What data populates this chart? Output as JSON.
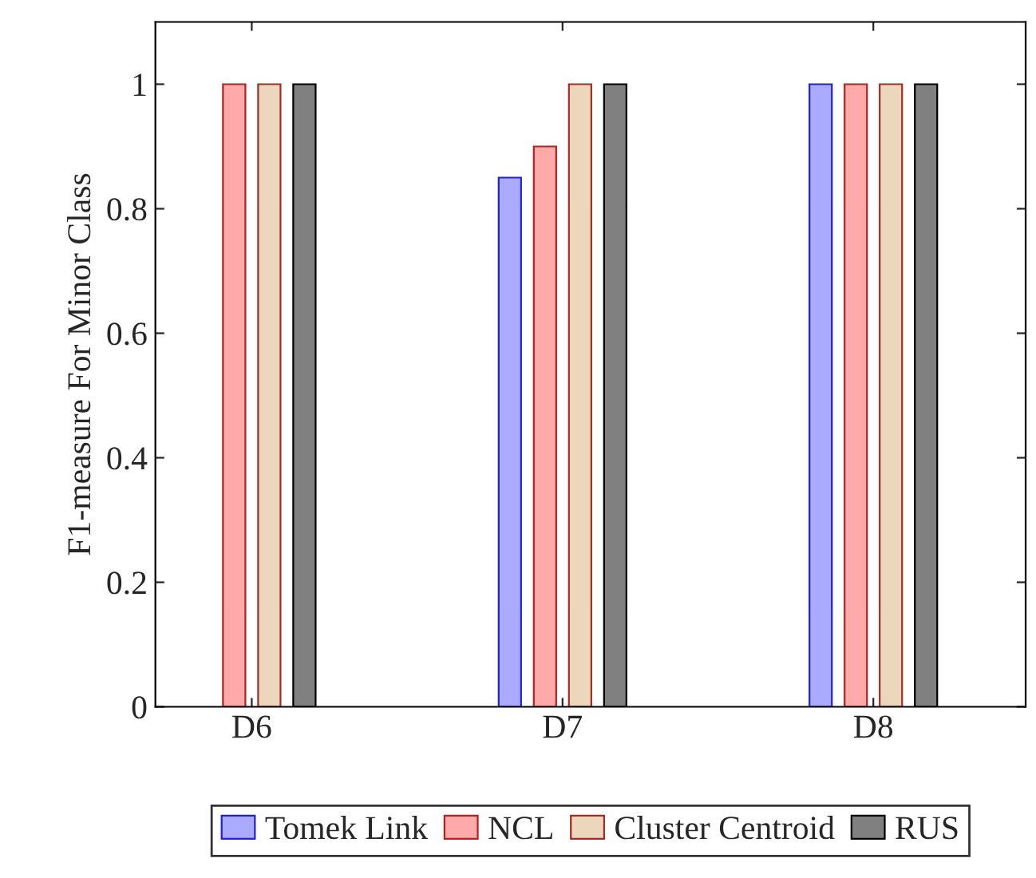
{
  "chart_data": {
    "type": "bar",
    "ylabel": "F1-measure For Minor Class",
    "categories": [
      "D6",
      "D7",
      "D8"
    ],
    "series": [
      {
        "name": "Tomek Link",
        "color": "#aaaaff",
        "values": [
          null,
          0.85,
          1
        ]
      },
      {
        "name": "NCL",
        "color": "#ffaaaa",
        "values": [
          1,
          0.9,
          1
        ]
      },
      {
        "name": "Cluster Centroid",
        "color": "#ecd7bd",
        "values": [
          1,
          1,
          1
        ]
      },
      {
        "name": "RUS",
        "color": "#808080",
        "values": [
          1,
          1,
          1
        ]
      }
    ],
    "ylim": [
      0,
      1.1
    ],
    "yticks": [
      0,
      0.2,
      0.4,
      0.6,
      0.8,
      1
    ],
    "grid": false,
    "legend": "bottom"
  }
}
